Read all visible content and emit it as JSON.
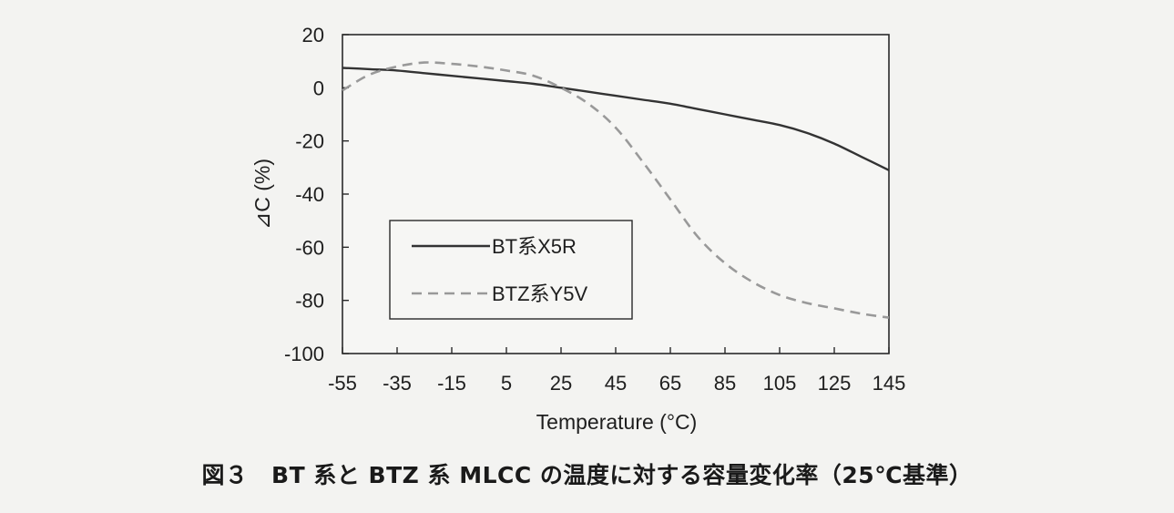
{
  "chart_data": {
    "type": "line",
    "xlabel": "Temperature (°C)",
    "ylabel": "⊿C (%)",
    "xlim": [
      -55,
      145
    ],
    "ylim": [
      -100,
      20
    ],
    "xticks": [
      -55,
      -35,
      -15,
      5,
      25,
      45,
      65,
      85,
      105,
      125,
      145
    ],
    "yticks": [
      20,
      0,
      -20,
      -40,
      -60,
      -80,
      -100
    ],
    "legend_position": "lower-left",
    "grid": false,
    "series": [
      {
        "name": "BT系X5R",
        "style": "solid",
        "color": "#333333",
        "x": [
          -55,
          -45,
          -35,
          -25,
          -15,
          -5,
          5,
          15,
          25,
          35,
          45,
          55,
          65,
          75,
          85,
          95,
          105,
          115,
          125,
          135,
          145
        ],
        "y": [
          7.5,
          7,
          6.5,
          5.5,
          4.5,
          3.5,
          2.5,
          1.5,
          0,
          -1.5,
          -3,
          -4.5,
          -6,
          -8,
          -10,
          -12,
          -14,
          -17,
          -21,
          -26,
          -31
        ]
      },
      {
        "name": "BTZ系Y5V",
        "style": "dashed",
        "color": "#999999",
        "x": [
          -55,
          -45,
          -35,
          -25,
          -15,
          -5,
          5,
          15,
          25,
          35,
          45,
          55,
          65,
          75,
          85,
          95,
          105,
          115,
          125,
          135,
          145
        ],
        "y": [
          -1,
          5,
          8,
          9.5,
          9,
          8,
          6.5,
          4.5,
          0,
          -6,
          -15,
          -28,
          -42,
          -56,
          -66,
          -73,
          -78,
          -81,
          -83,
          -85,
          -86.5
        ]
      }
    ]
  },
  "caption": "図３　BT 系と BTZ 系 MLCC の温度に対する容量変化率（25℃基準）"
}
